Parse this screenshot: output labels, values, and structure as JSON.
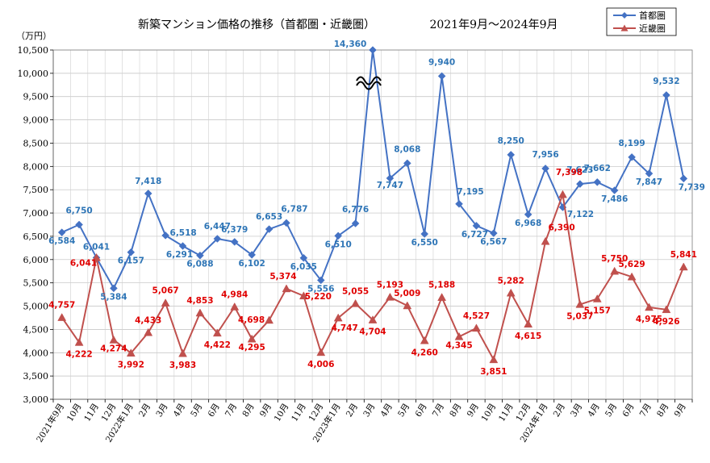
{
  "chart_data": {
    "type": "line",
    "title": "新築マンション価格の推移（首都圏・近畿圏）",
    "subtitle": "2021年9月～2024年9月",
    "ylabel": "（万円）",
    "ylim": [
      3000,
      10500
    ],
    "yticks": [
      "3,000",
      "3,500",
      "4,000",
      "4,500",
      "5,000",
      "5,500",
      "6,000",
      "6,500",
      "7,000",
      "7,500",
      "8,000",
      "8,500",
      "9,000",
      "9,500",
      "10,000",
      "10,500"
    ],
    "categories": [
      "2021年9月",
      "10月",
      "11月",
      "12月",
      "2022年1月",
      "2月",
      "3月",
      "4月",
      "5月",
      "6月",
      "7月",
      "8月",
      "9月",
      "10月",
      "11月",
      "12月",
      "2023年1月",
      "2月",
      "3月",
      "4月",
      "5月",
      "6月",
      "7月",
      "8月",
      "9月",
      "10月",
      "11月",
      "12月",
      "2024年1月",
      "2月",
      "3月",
      "4月",
      "5月",
      "6月",
      "7月",
      "8月",
      "9月"
    ],
    "grid": true,
    "legend_position": "top-right",
    "axis_break": {
      "category": "3月",
      "index": 18,
      "note": "≈"
    },
    "series": [
      {
        "name": "首都圏",
        "color": "#4472C4",
        "label_color": "#2E75B6",
        "marker": "diamond",
        "values": [
          6584,
          6750,
          6041,
          5384,
          6157,
          7418,
          6518,
          6291,
          6088,
          6447,
          6379,
          6102,
          6653,
          6787,
          6035,
          5556,
          6510,
          6776,
          14360,
          7747,
          8068,
          6550,
          9940,
          7195,
          6727,
          6567,
          8250,
          6968,
          7956,
          7122,
          7623,
          7662,
          7486,
          8199,
          7847,
          9532,
          7739
        ],
        "labels": [
          "6,584",
          "6,750",
          "6,041",
          "5,384",
          "6,157",
          "7,418",
          "6,518",
          "6,291",
          "6,088",
          "6,447",
          "6,379",
          "6,102",
          "6,653",
          "6,787",
          "6,035",
          "5,556",
          "6,510",
          "6,776",
          "14,360",
          "7,747",
          "8,068",
          "6,550",
          "9,940",
          "7,195",
          "6,727",
          "6,567",
          "8,250",
          "6,968",
          "7,956",
          "7,122",
          "7,623",
          "7,662",
          "7,486",
          "8,199",
          "7,847",
          "9,532",
          "7,739"
        ]
      },
      {
        "name": "近畿圏",
        "color": "#C0504D",
        "label_color": "#E00000",
        "marker": "triangle",
        "values": [
          4757,
          4222,
          6041,
          4274,
          3992,
          4433,
          5067,
          3983,
          4853,
          4422,
          4984,
          4295,
          4698,
          5374,
          5220,
          4006,
          4747,
          5055,
          4704,
          5193,
          5009,
          4260,
          5188,
          4345,
          4527,
          3851,
          5282,
          4615,
          6390,
          7398,
          5037,
          5157,
          5750,
          5629,
          4975,
          4926,
          5841
        ],
        "labels": [
          "4,757",
          "4,222",
          "6,041",
          "4,274",
          "3,992",
          "4,433",
          "5,067",
          "3,983",
          "4,853",
          "4,422",
          "4,984",
          "4,295",
          "4,698",
          "5,374",
          "5,220",
          "4,006",
          "4,747",
          "5,055",
          "4,704",
          "5,193",
          "5,009",
          "4,260",
          "5,188",
          "4,345",
          "4,527",
          "3,851",
          "5,282",
          "4,615",
          "6,390",
          "7,398",
          "5,037",
          "5,157",
          "5,750",
          "5,629",
          "4,975",
          "4,926",
          "5,841"
        ]
      }
    ]
  }
}
